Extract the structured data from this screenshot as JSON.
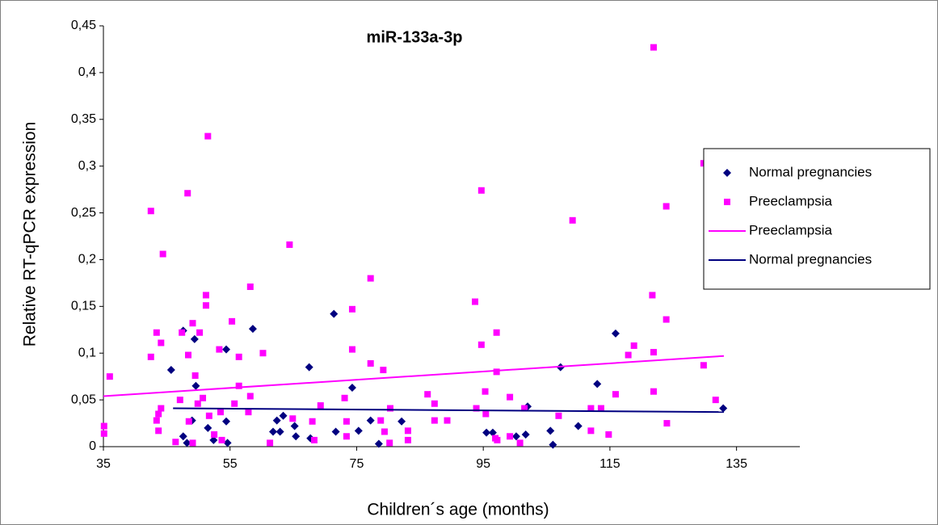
{
  "chart_data": {
    "type": "scatter",
    "title": "miR-133a-3p",
    "x_label": "Children´s age (months)",
    "y_label": "Relative RT-qPCR expression",
    "xlim": [
      35,
      145
    ],
    "xticks": [
      35,
      55,
      75,
      95,
      115,
      135
    ],
    "ylim": [
      0,
      0.45
    ],
    "yticks": [
      0,
      {
        "value": 0.05,
        "label": "0,05"
      },
      {
        "value": 0.1,
        "label": "0,1"
      },
      {
        "value": 0.15,
        "label": "0,15"
      },
      {
        "value": 0.2,
        "label": "0,2"
      },
      {
        "value": 0.25,
        "label": "0,25"
      },
      {
        "value": 0.3,
        "label": "0,3"
      },
      {
        "value": 0.35,
        "label": "0,35"
      },
      {
        "value": 0.4,
        "label": "0,4"
      },
      {
        "value": 0.45,
        "label": "0,45"
      }
    ],
    "legend": "right",
    "series": [
      {
        "name": "Normal pregnancies",
        "type": "scatter",
        "marker": "diamond",
        "color": "#000080",
        "x": [
          45.7,
          47.6,
          49.4,
          47.6,
          48.2,
          49.6,
          49,
          51.5,
          52.4,
          54.4,
          54.4,
          54.6,
          58.6,
          61.8,
          62.4,
          62.9,
          63.4,
          65.2,
          65.4,
          67.5,
          67.7,
          71.4,
          71.7,
          74.3,
          75.3,
          77.2,
          78.5,
          82.1,
          95.5,
          96.5,
          100.2,
          101.7,
          105.6,
          106,
          102,
          107.2,
          110,
          113,
          115.9,
          132.9
        ],
        "values": [
          0.082,
          0.124,
          0.115,
          0.011,
          0.004,
          0.065,
          0.028,
          0.02,
          0.007,
          0.104,
          0.027,
          0.004,
          0.126,
          0.016,
          0.028,
          0.016,
          0.033,
          0.022,
          0.011,
          0.085,
          0.009,
          0.142,
          0.016,
          0.063,
          0.017,
          0.028,
          0.003,
          0.027,
          0.015,
          0.015,
          0.011,
          0.013,
          0.017,
          0.002,
          0.043,
          0.085,
          0.022,
          0.067,
          0.121,
          0.041
        ]
      },
      {
        "name": "Preeclampsia",
        "type": "scatter",
        "marker": "square",
        "color": "#ff00ff",
        "x": [
          35.1,
          35.1,
          36,
          42.5,
          42.5,
          43.4,
          43.4,
          43.7,
          44.1,
          44.4,
          44.1,
          43.7,
          46.4,
          47.1,
          47.4,
          48.3,
          48.4,
          48.5,
          49.1,
          49.1,
          49.5,
          49.9,
          50.2,
          50.7,
          51.2,
          51.2,
          51.5,
          51.7,
          52.5,
          53.3,
          53.7,
          53.5,
          55.3,
          55.7,
          56.4,
          56.4,
          58.2,
          58.2,
          57.9,
          60.2,
          61.3,
          64.4,
          64.9,
          68,
          68.3,
          69.3,
          73.4,
          73.4,
          73.1,
          74.3,
          74.3,
          77.2,
          77.2,
          78.8,
          79.2,
          79.4,
          80.2,
          80.3,
          83.1,
          83.1,
          86.2,
          87.3,
          87.3,
          89.3,
          93.7,
          94.7,
          94.7,
          95.3,
          95.4,
          93.9,
          96.9,
          97.1,
          97.1,
          97.2,
          99.2,
          99.2,
          100.8,
          101.5,
          106.9,
          109.1,
          112,
          112,
          113.6,
          114.8,
          115.9,
          117.9,
          118.8,
          121.7,
          121.9,
          121.9,
          121.9,
          123.9,
          123.9,
          124,
          129.8,
          129.8,
          131.7
        ],
        "values": [
          0.022,
          0.014,
          0.075,
          0.096,
          0.252,
          0.122,
          0.028,
          0.017,
          0.111,
          0.206,
          0.041,
          0.035,
          0.005,
          0.05,
          0.122,
          0.271,
          0.098,
          0.027,
          0.132,
          0.004,
          0.076,
          0.046,
          0.122,
          0.052,
          0.162,
          0.151,
          0.332,
          0.033,
          0.013,
          0.104,
          0.007,
          0.037,
          0.134,
          0.046,
          0.096,
          0.065,
          0.171,
          0.054,
          0.037,
          0.1,
          0.004,
          0.216,
          0.03,
          0.027,
          0.007,
          0.044,
          0.011,
          0.027,
          0.052,
          0.147,
          0.104,
          0.18,
          0.089,
          0.028,
          0.082,
          0.016,
          0.004,
          0.041,
          0.017,
          0.007,
          0.056,
          0.046,
          0.028,
          0.028,
          0.155,
          0.274,
          0.109,
          0.059,
          0.035,
          0.041,
          0.009,
          0.122,
          0.08,
          0.007,
          0.053,
          0.011,
          0.004,
          0.041,
          0.033,
          0.242,
          0.017,
          0.041,
          0.041,
          0.013,
          0.056,
          0.098,
          0.108,
          0.162,
          0.101,
          0.059,
          0.427,
          0.257,
          0.136,
          0.025,
          0.303,
          0.087,
          0.05
        ]
      },
      {
        "name": "Preeclampsia",
        "type": "line",
        "color": "#ff00ff",
        "x": [
          35,
          133
        ],
        "values": [
          0.054,
          0.097
        ]
      },
      {
        "name": "Normal pregnancies",
        "type": "line",
        "color": "#000080",
        "x": [
          46,
          133
        ],
        "values": [
          0.041,
          0.037
        ]
      }
    ]
  }
}
